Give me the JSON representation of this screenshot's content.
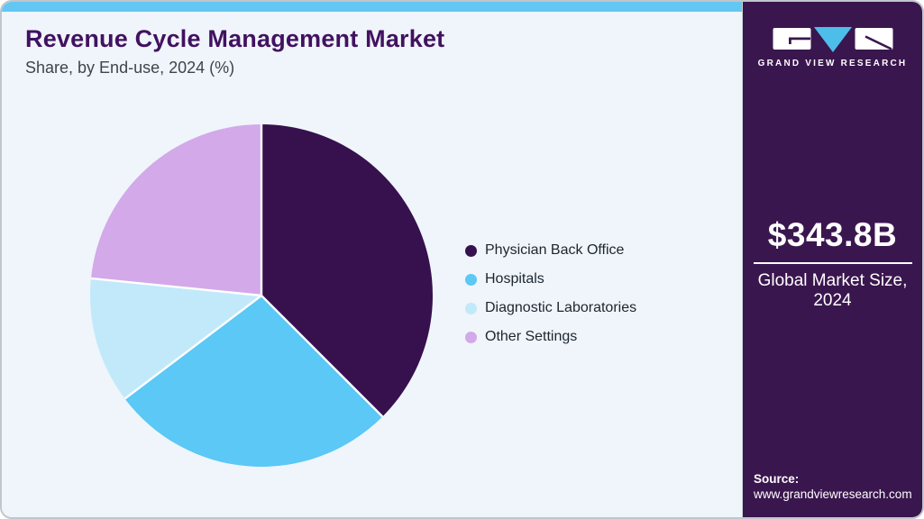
{
  "header": {
    "title": "Revenue Cycle Management Market",
    "subtitle": "Share, by End-use, 2024 (%)"
  },
  "chart_data": {
    "type": "pie",
    "title": "Revenue Cycle Management Market Share, by End-use, 2024 (%)",
    "categories": [
      "Physician Back Office",
      "Hospitals",
      "Diagnostic Laboratories",
      "Other Settings"
    ],
    "values": [
      37.5,
      27.2,
      11.9,
      23.4
    ],
    "unit": "%",
    "colors": [
      "#36114d",
      "#5bc8f5",
      "#c2e9fa",
      "#d3a9e9"
    ],
    "start_angle_deg": 0,
    "direction": "clockwise",
    "legend_position": "right",
    "data_labels": false
  },
  "legend": {
    "items": [
      {
        "label": "Physician Back Office",
        "color": "#36114d"
      },
      {
        "label": "Hospitals",
        "color": "#5bc8f5"
      },
      {
        "label": "Diagnostic Laboratories",
        "color": "#c2e9fa"
      },
      {
        "label": "Other Settings",
        "color": "#d3a9e9"
      }
    ]
  },
  "sidebar": {
    "brand_name": "GRAND VIEW RESEARCH",
    "market_size_value": "$343.8B",
    "market_size_label": "Global Market Size, 2024",
    "source_label": "Source:",
    "source_url": "www.grandviewresearch.com"
  },
  "theme": {
    "top_strip": "#63c7f2",
    "panel_background": "#eff5fa",
    "sidebar_background": "#3a164e",
    "title_color": "#421161",
    "logo_triangle": "#4dbde9",
    "border_color": "#c0c6cd"
  }
}
